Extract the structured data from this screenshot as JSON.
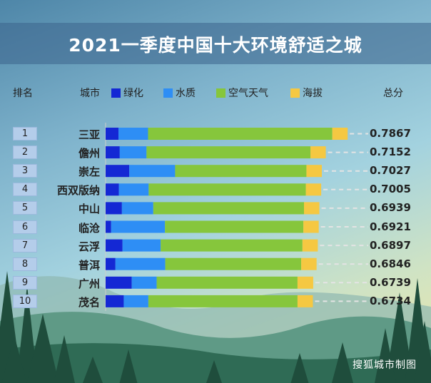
{
  "title": "2021一季度中国十大环境舒适之城",
  "headers": {
    "rank": "排名",
    "city": "城市",
    "score": "总分"
  },
  "credit": "搜狐城市制图",
  "chart_data": {
    "type": "bar",
    "orientation": "horizontal",
    "stacked": true,
    "title": "2021一季度中国十大环境舒适之城",
    "legend_position": "top",
    "ranks": [
      "1",
      "2",
      "3",
      "4",
      "5",
      "6",
      "7",
      "8",
      "9",
      "10"
    ],
    "categories": [
      "三亚",
      "儋州",
      "崇左",
      "西双版纳",
      "中山",
      "临沧",
      "云浮",
      "普洱",
      "广州",
      "茂名"
    ],
    "totals": [
      "0.7867",
      "0.7152",
      "0.7027",
      "0.7005",
      "0.6939",
      "0.6921",
      "0.6897",
      "0.6846",
      "0.6739",
      "0.6734"
    ],
    "series": [
      {
        "name": "绿化",
        "color": "#1428d4",
        "values": [
          0.042,
          0.046,
          0.077,
          0.043,
          0.053,
          0.018,
          0.055,
          0.032,
          0.085,
          0.059
        ]
      },
      {
        "name": "水质",
        "color": "#2e8ef5",
        "values": [
          0.096,
          0.087,
          0.149,
          0.097,
          0.102,
          0.175,
          0.124,
          0.162,
          0.081,
          0.08
        ]
      },
      {
        "name": "空气天气",
        "color": "#86c63c",
        "values": [
          0.599,
          0.533,
          0.427,
          0.511,
          0.49,
          0.45,
          0.461,
          0.442,
          0.458,
          0.485
        ]
      },
      {
        "name": "海拔",
        "color": "#f5c842",
        "values": [
          0.05,
          0.05,
          0.05,
          0.05,
          0.05,
          0.05,
          0.05,
          0.05,
          0.051,
          0.05
        ]
      }
    ]
  }
}
